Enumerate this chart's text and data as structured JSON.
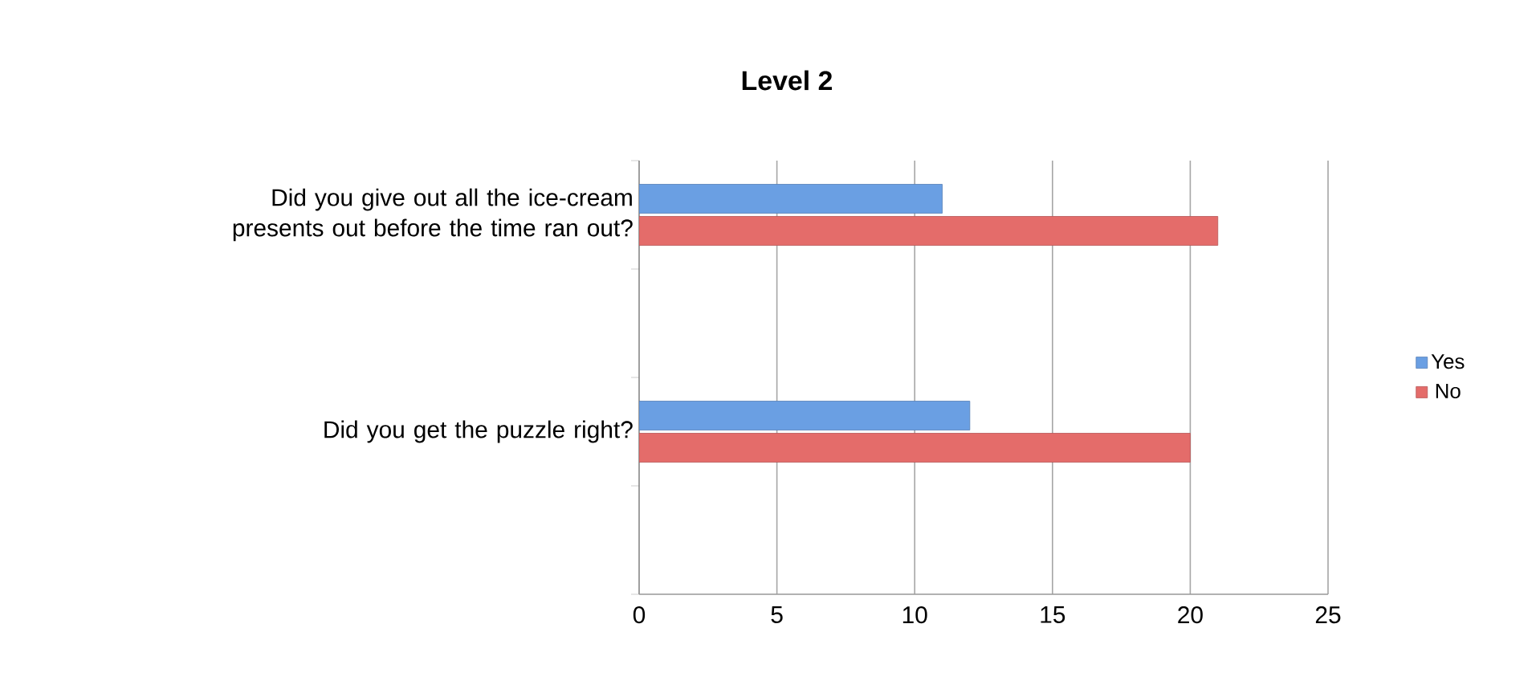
{
  "chart_data": {
    "type": "bar",
    "orientation": "horizontal",
    "title": "Level 2",
    "categories": [
      "Did you give out all the ice-cream presents out before the time ran out?",
      null,
      "Did you get the puzzle right?",
      null
    ],
    "series": [
      {
        "name": "Yes",
        "color": "#6a9fe3",
        "values": [
          11,
          null,
          12,
          null
        ]
      },
      {
        "name": "No",
        "color": "#e46c6a",
        "values": [
          21,
          null,
          20,
          null
        ]
      }
    ],
    "xlim": [
      0,
      25
    ],
    "xticks": [
      0,
      5,
      10,
      15,
      20,
      25
    ],
    "grid": "x",
    "legend": "right"
  }
}
